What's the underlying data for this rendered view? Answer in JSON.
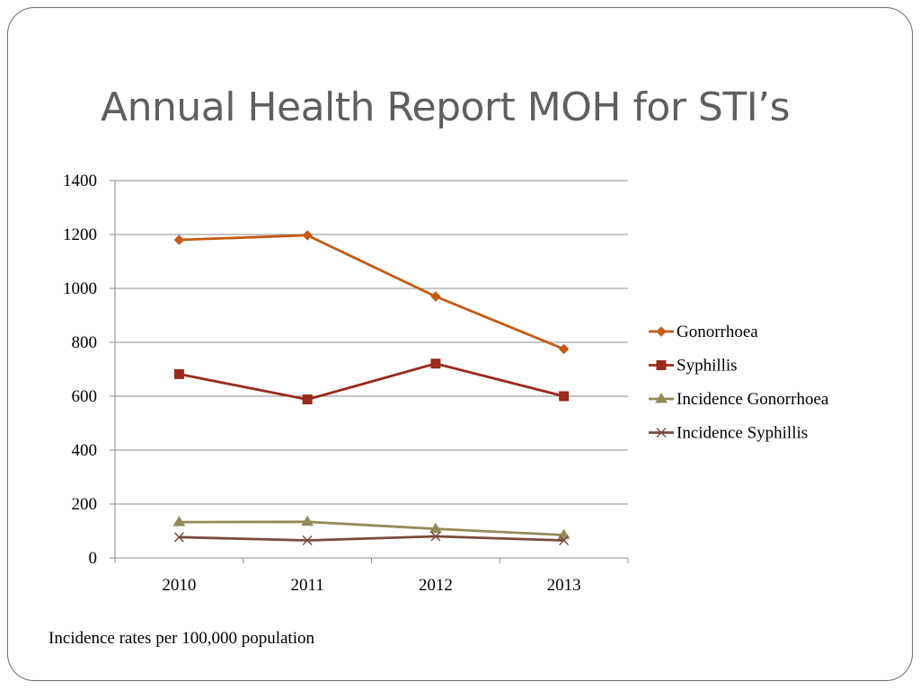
{
  "slide": {
    "title": "Annual Health Report MOH for STI’s",
    "footnote": "Incidence rates per 100,000 population"
  },
  "chart_data": {
    "type": "line",
    "title": "",
    "xlabel": "",
    "ylabel": "",
    "categories": [
      "2010",
      "2011",
      "2012",
      "2013"
    ],
    "ylim": [
      0,
      1400
    ],
    "yticks": [
      0,
      200,
      400,
      600,
      800,
      1000,
      1200,
      1400
    ],
    "grid": true,
    "legend_position": "right",
    "series": [
      {
        "name": "Gonorrhoea",
        "values": [
          1180,
          1197,
          970,
          775
        ],
        "color": "#c55a11",
        "marker": "diamond"
      },
      {
        "name": "Syphillis",
        "values": [
          682,
          588,
          721,
          600
        ],
        "color": "#9a2a1a",
        "marker": "square"
      },
      {
        "name": "Incidence Gonorrhoea",
        "values": [
          133,
          134,
          108,
          85
        ],
        "color": "#948a54",
        "marker": "triangle"
      },
      {
        "name": "Incidence Syphillis",
        "values": [
          77,
          65,
          80,
          65
        ],
        "color": "#7b4a3f",
        "marker": "x"
      }
    ]
  }
}
